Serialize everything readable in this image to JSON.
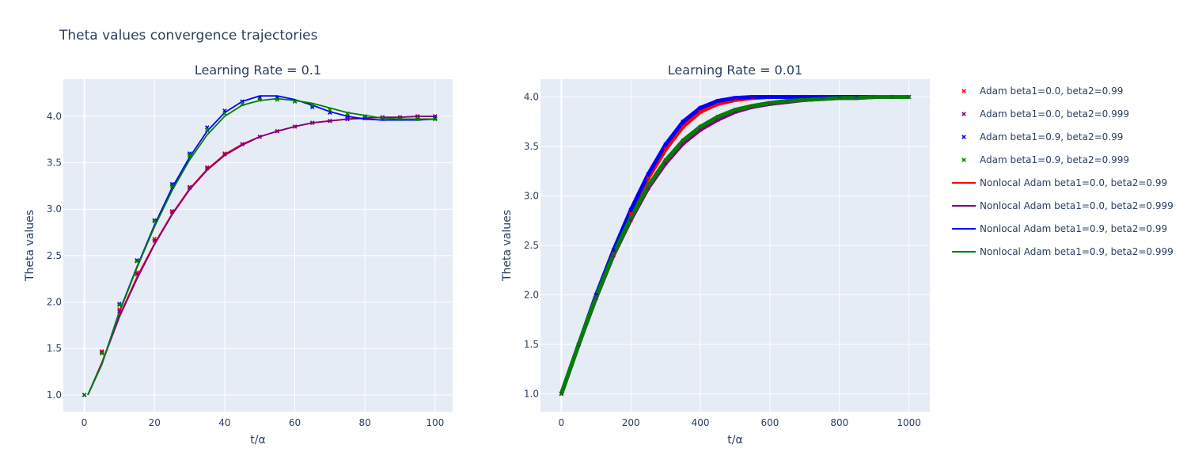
{
  "figure": {
    "title": "Theta values convergence trajectories"
  },
  "colors": {
    "plot_bg": "#e5ecf6",
    "grid": "#ffffff",
    "text": "#2a3f5f"
  },
  "legend": {
    "placement": "right",
    "entries": [
      {
        "label": "Adam beta1=0.0, beta2=0.99",
        "kind": "marker",
        "color": "#ff0000"
      },
      {
        "label": "Adam beta1=0.0, beta2=0.999",
        "kind": "marker",
        "color": "#800080"
      },
      {
        "label": "Adam beta1=0.9, beta2=0.99",
        "kind": "marker",
        "color": "#0000ff"
      },
      {
        "label": "Adam beta1=0.9, beta2=0.999",
        "kind": "marker",
        "color": "#008000"
      },
      {
        "label": "Nonlocal Adam beta1=0.0, beta2=0.99",
        "kind": "line",
        "color": "#ff0000"
      },
      {
        "label": "Nonlocal Adam beta1=0.0, beta2=0.999",
        "kind": "line",
        "color": "#800080"
      },
      {
        "label": "Nonlocal Adam beta1=0.9, beta2=0.99",
        "kind": "line",
        "color": "#0000ff"
      },
      {
        "label": "Nonlocal Adam beta1=0.9, beta2=0.999",
        "kind": "line",
        "color": "#008000"
      }
    ]
  },
  "chart_data": [
    {
      "type": "line",
      "title": "Learning Rate = 0.1",
      "xlabel": "t/α",
      "ylabel": "Theta values",
      "xlim": [
        -6,
        105
      ],
      "ylim": [
        0.82,
        4.4
      ],
      "xticks": [
        0,
        20,
        40,
        60,
        80,
        100
      ],
      "yticks": [
        1.0,
        1.5,
        2.0,
        2.5,
        3.0,
        3.5,
        4.0
      ],
      "grid": true,
      "series": [
        {
          "name": "Adam beta1=0.0, beta2=0.99",
          "mode": "markers",
          "color": "#ff0000",
          "x": [
            0,
            5,
            10,
            15,
            20,
            25,
            30,
            35,
            40,
            45,
            50,
            55,
            60,
            65,
            70,
            75,
            80,
            85,
            90,
            95,
            100
          ],
          "y": [
            1.0,
            1.47,
            1.92,
            2.32,
            2.68,
            2.98,
            3.24,
            3.45,
            3.6,
            3.7,
            3.78,
            3.84,
            3.89,
            3.93,
            3.95,
            3.97,
            3.98,
            3.99,
            3.99,
            4.0,
            4.0
          ]
        },
        {
          "name": "Adam beta1=0.0, beta2=0.999",
          "mode": "markers",
          "color": "#800080",
          "x": [
            0,
            5,
            10,
            15,
            20,
            25,
            30,
            35,
            40,
            45,
            50,
            55,
            60,
            65,
            70,
            75,
            80,
            85,
            90,
            95,
            100
          ],
          "y": [
            1.0,
            1.46,
            1.9,
            2.3,
            2.66,
            2.97,
            3.23,
            3.44,
            3.59,
            3.7,
            3.78,
            3.84,
            3.89,
            3.93,
            3.95,
            3.97,
            3.98,
            3.99,
            3.99,
            4.0,
            4.0
          ]
        },
        {
          "name": "Adam beta1=0.9, beta2=0.99",
          "mode": "markers",
          "color": "#0000ff",
          "x": [
            0,
            5,
            10,
            15,
            20,
            25,
            30,
            35,
            40,
            45,
            50,
            55,
            60,
            65,
            70,
            75,
            80,
            85,
            90,
            95,
            100
          ],
          "y": [
            1.0,
            1.45,
            1.98,
            2.45,
            2.88,
            3.27,
            3.6,
            3.88,
            4.06,
            4.16,
            4.2,
            4.2,
            4.16,
            4.1,
            4.04,
            4.0,
            3.98,
            3.97,
            3.97,
            3.97,
            3.98
          ]
        },
        {
          "name": "Adam beta1=0.9, beta2=0.999",
          "mode": "markers",
          "color": "#008000",
          "x": [
            0,
            5,
            10,
            15,
            20,
            25,
            30,
            35,
            40,
            45,
            50,
            55,
            60,
            65,
            70,
            75,
            80,
            85,
            90,
            95,
            100
          ],
          "y": [
            1.0,
            1.45,
            1.97,
            2.44,
            2.87,
            3.25,
            3.58,
            3.85,
            4.03,
            4.13,
            4.18,
            4.18,
            4.16,
            4.12,
            4.07,
            4.03,
            4.0,
            3.98,
            3.97,
            3.97,
            3.97
          ]
        },
        {
          "name": "Nonlocal Adam beta1=0.0, beta2=0.99",
          "mode": "lines",
          "color": "#ff0000",
          "x": [
            1,
            5,
            10,
            15,
            20,
            25,
            30,
            35,
            40,
            45,
            50,
            55,
            60,
            65,
            70,
            75,
            80,
            85,
            90,
            95,
            100
          ],
          "y": [
            1.0,
            1.35,
            1.85,
            2.27,
            2.63,
            2.95,
            3.22,
            3.43,
            3.59,
            3.7,
            3.78,
            3.84,
            3.89,
            3.93,
            3.95,
            3.97,
            3.98,
            3.99,
            3.99,
            4.0,
            4.0
          ]
        },
        {
          "name": "Nonlocal Adam beta1=0.0, beta2=0.999",
          "mode": "lines",
          "color": "#800080",
          "x": [
            1,
            5,
            10,
            15,
            20,
            25,
            30,
            35,
            40,
            45,
            50,
            55,
            60,
            65,
            70,
            75,
            80,
            85,
            90,
            95,
            100
          ],
          "y": [
            1.0,
            1.34,
            1.84,
            2.25,
            2.62,
            2.94,
            3.21,
            3.42,
            3.58,
            3.69,
            3.78,
            3.84,
            3.89,
            3.93,
            3.95,
            3.97,
            3.98,
            3.99,
            3.99,
            4.0,
            4.0
          ]
        },
        {
          "name": "Nonlocal Adam beta1=0.9, beta2=0.99",
          "mode": "lines",
          "color": "#0000ff",
          "x": [
            1,
            5,
            10,
            15,
            20,
            25,
            30,
            35,
            40,
            45,
            50,
            55,
            60,
            65,
            70,
            75,
            80,
            85,
            90,
            95,
            100
          ],
          "y": [
            1.0,
            1.33,
            1.9,
            2.38,
            2.83,
            3.23,
            3.56,
            3.84,
            4.04,
            4.16,
            4.22,
            4.22,
            4.18,
            4.12,
            4.05,
            4.0,
            3.97,
            3.96,
            3.96,
            3.96,
            3.97
          ]
        },
        {
          "name": "Nonlocal Adam beta1=0.9, beta2=0.999",
          "mode": "lines",
          "color": "#008000",
          "x": [
            1,
            5,
            10,
            15,
            20,
            25,
            30,
            35,
            40,
            45,
            50,
            55,
            60,
            65,
            70,
            75,
            80,
            85,
            90,
            95,
            100
          ],
          "y": [
            1.0,
            1.33,
            1.89,
            2.37,
            2.81,
            3.2,
            3.53,
            3.8,
            4.0,
            4.12,
            4.17,
            4.19,
            4.17,
            4.14,
            4.09,
            4.04,
            4.01,
            3.98,
            3.97,
            3.97,
            3.97
          ]
        }
      ]
    },
    {
      "type": "line",
      "title": "Learning Rate = 0.01",
      "xlabel": "t/α",
      "ylabel": "Theta values",
      "xlim": [
        -60,
        1060
      ],
      "ylim": [
        0.82,
        4.18
      ],
      "xticks": [
        0,
        200,
        400,
        600,
        800,
        1000
      ],
      "yticks": [
        1.0,
        1.5,
        2.0,
        2.5,
        3.0,
        3.5,
        4.0
      ],
      "grid": true,
      "series": [
        {
          "name": "Adam beta1=0.0, beta2=0.99",
          "mode": "markers",
          "color": "#ff0000",
          "x": [
            0,
            50,
            100,
            150,
            200,
            250,
            300,
            350,
            400,
            450,
            500,
            550,
            600,
            650,
            700,
            750,
            800,
            850,
            900,
            950,
            1000
          ],
          "y": [
            1.0,
            1.5,
            1.98,
            2.42,
            2.82,
            3.18,
            3.47,
            3.7,
            3.85,
            3.93,
            3.97,
            3.99,
            4.0,
            4.0,
            4.0,
            4.0,
            4.0,
            4.0,
            4.0,
            4.0,
            4.0
          ]
        },
        {
          "name": "Adam beta1=0.0, beta2=0.999",
          "mode": "markers",
          "color": "#800080",
          "x": [
            0,
            50,
            100,
            150,
            200,
            250,
            300,
            350,
            400,
            450,
            500,
            550,
            600,
            650,
            700,
            750,
            800,
            850,
            900,
            950,
            1000
          ],
          "y": [
            1.0,
            1.5,
            1.97,
            2.4,
            2.76,
            3.08,
            3.33,
            3.53,
            3.67,
            3.77,
            3.85,
            3.9,
            3.93,
            3.95,
            3.97,
            3.98,
            3.99,
            3.99,
            4.0,
            4.0,
            4.0
          ]
        },
        {
          "name": "Adam beta1=0.9, beta2=0.99",
          "mode": "markers",
          "color": "#0000ff",
          "x": [
            0,
            50,
            100,
            150,
            200,
            250,
            300,
            350,
            400,
            450,
            500,
            550,
            600,
            650,
            700,
            750,
            800,
            850,
            900,
            950,
            1000
          ],
          "y": [
            1.0,
            1.5,
            2.0,
            2.45,
            2.86,
            3.22,
            3.52,
            3.75,
            3.89,
            3.96,
            3.99,
            4.0,
            4.0,
            4.0,
            4.0,
            4.0,
            4.0,
            4.0,
            4.0,
            4.0,
            4.0
          ]
        },
        {
          "name": "Adam beta1=0.9, beta2=0.999",
          "mode": "markers",
          "color": "#008000",
          "x": [
            0,
            50,
            100,
            150,
            200,
            250,
            300,
            350,
            400,
            450,
            500,
            550,
            600,
            650,
            700,
            750,
            800,
            850,
            900,
            950,
            1000
          ],
          "y": [
            1.0,
            1.5,
            1.98,
            2.41,
            2.78,
            3.1,
            3.36,
            3.56,
            3.7,
            3.8,
            3.87,
            3.91,
            3.94,
            3.96,
            3.97,
            3.98,
            3.99,
            3.99,
            4.0,
            4.0,
            4.0
          ]
        },
        {
          "name": "Nonlocal Adam beta1=0.0, beta2=0.99",
          "mode": "lines",
          "color": "#ff0000",
          "x": [
            0,
            50,
            100,
            150,
            200,
            250,
            300,
            350,
            400,
            450,
            500,
            550,
            600,
            650,
            700,
            750,
            800,
            850,
            900,
            950,
            1000
          ],
          "y": [
            1.0,
            1.5,
            1.98,
            2.42,
            2.82,
            3.18,
            3.47,
            3.7,
            3.85,
            3.93,
            3.97,
            3.99,
            4.0,
            4.0,
            4.0,
            4.0,
            4.0,
            4.0,
            4.0,
            4.0,
            4.0
          ]
        },
        {
          "name": "Nonlocal Adam beta1=0.0, beta2=0.999",
          "mode": "lines",
          "color": "#800080",
          "x": [
            0,
            50,
            100,
            150,
            200,
            250,
            300,
            350,
            400,
            450,
            500,
            550,
            600,
            650,
            700,
            750,
            800,
            850,
            900,
            950,
            1000
          ],
          "y": [
            1.0,
            1.5,
            1.97,
            2.4,
            2.76,
            3.08,
            3.33,
            3.53,
            3.67,
            3.77,
            3.85,
            3.9,
            3.93,
            3.95,
            3.97,
            3.98,
            3.99,
            3.99,
            4.0,
            4.0,
            4.0
          ]
        },
        {
          "name": "Nonlocal Adam beta1=0.9, beta2=0.99",
          "mode": "lines",
          "color": "#0000ff",
          "x": [
            0,
            50,
            100,
            150,
            200,
            250,
            300,
            350,
            400,
            450,
            500,
            550,
            600,
            650,
            700,
            750,
            800,
            850,
            900,
            950,
            1000
          ],
          "y": [
            1.0,
            1.5,
            2.0,
            2.45,
            2.86,
            3.22,
            3.52,
            3.75,
            3.89,
            3.96,
            3.99,
            4.0,
            4.0,
            4.0,
            4.0,
            4.0,
            4.0,
            4.0,
            4.0,
            4.0,
            4.0
          ]
        },
        {
          "name": "Nonlocal Adam beta1=0.9, beta2=0.999",
          "mode": "lines",
          "color": "#008000",
          "x": [
            0,
            50,
            100,
            150,
            200,
            250,
            300,
            350,
            400,
            450,
            500,
            550,
            600,
            650,
            700,
            750,
            800,
            850,
            900,
            950,
            1000
          ],
          "y": [
            1.0,
            1.5,
            1.98,
            2.41,
            2.78,
            3.1,
            3.36,
            3.56,
            3.7,
            3.8,
            3.87,
            3.91,
            3.94,
            3.96,
            3.97,
            3.98,
            3.99,
            3.99,
            4.0,
            4.0,
            4.0
          ]
        }
      ]
    }
  ]
}
